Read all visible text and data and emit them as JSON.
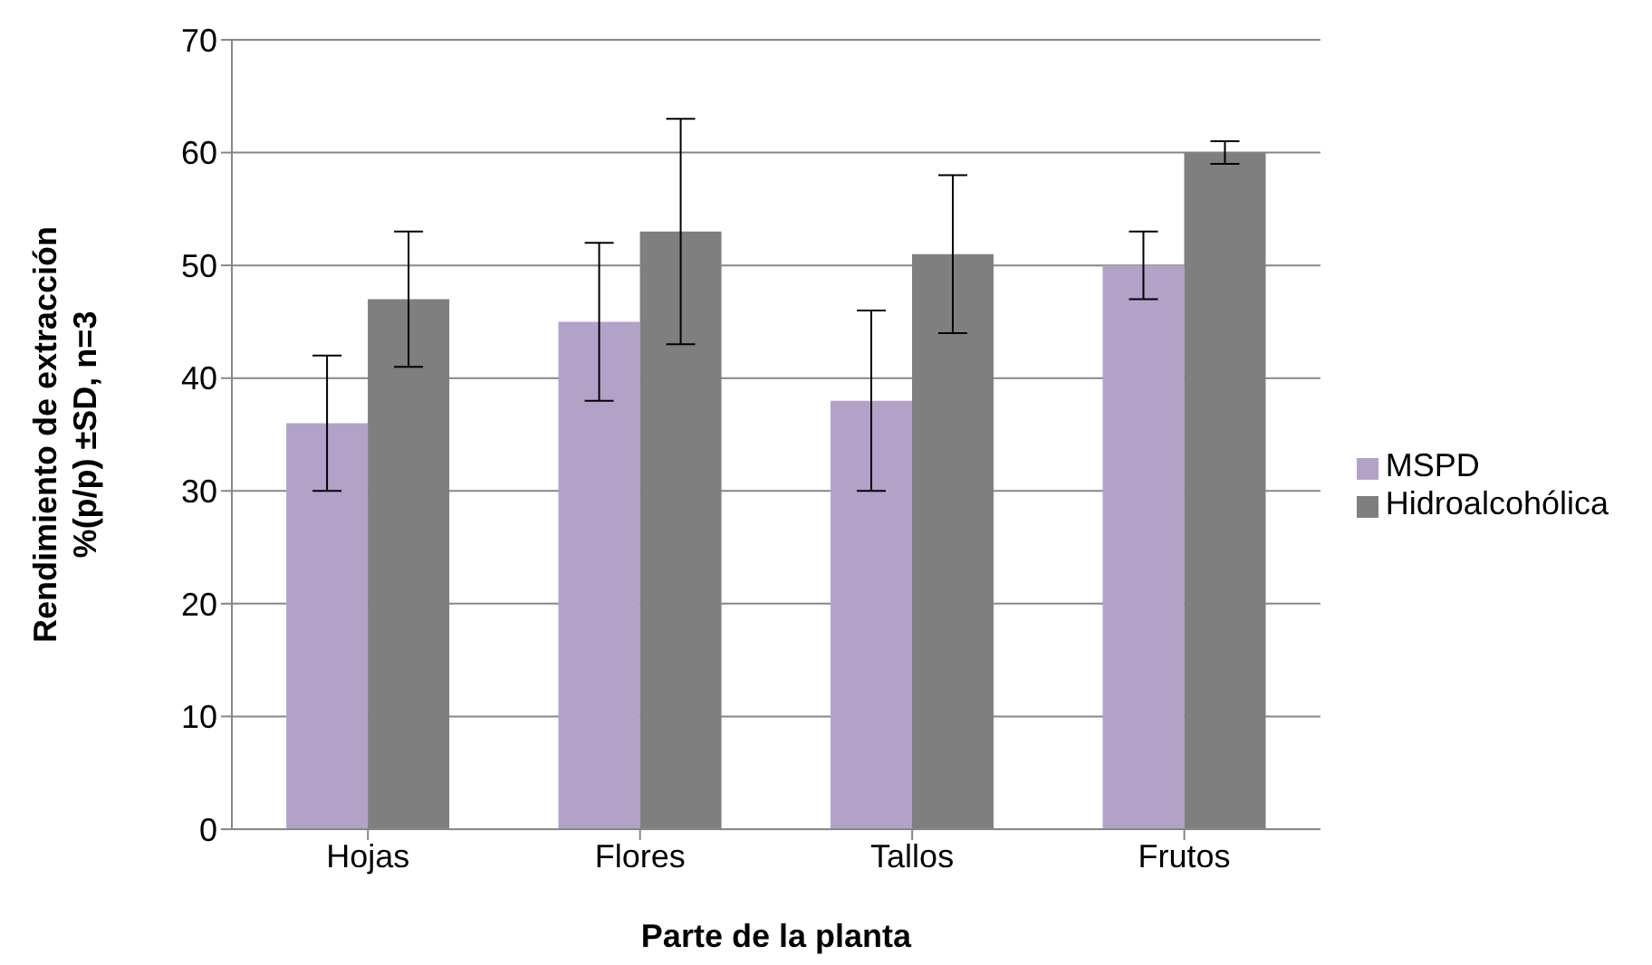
{
  "chart_data": {
    "type": "bar",
    "xlabel": "Parte de la planta",
    "ylabel": "Rendimiento de extracción\n%(p/p) ±SD, n=3",
    "categories": [
      "Hojas",
      "Flores",
      "Tallos",
      "Frutos"
    ],
    "series": [
      {
        "name": "MSPD",
        "color": "#b3a2c7",
        "values": [
          36,
          45,
          38,
          50
        ],
        "errors": [
          6,
          7,
          8,
          3
        ]
      },
      {
        "name": "Hidroalcohólica",
        "color": "#7f7f7f",
        "values": [
          47,
          53,
          51,
          60
        ],
        "errors": [
          6,
          10,
          7,
          1
        ]
      }
    ],
    "ylim": [
      0,
      70
    ],
    "yticks": [
      0,
      10,
      20,
      30,
      40,
      50,
      60,
      70
    ],
    "grid": "y",
    "legend": "right"
  }
}
